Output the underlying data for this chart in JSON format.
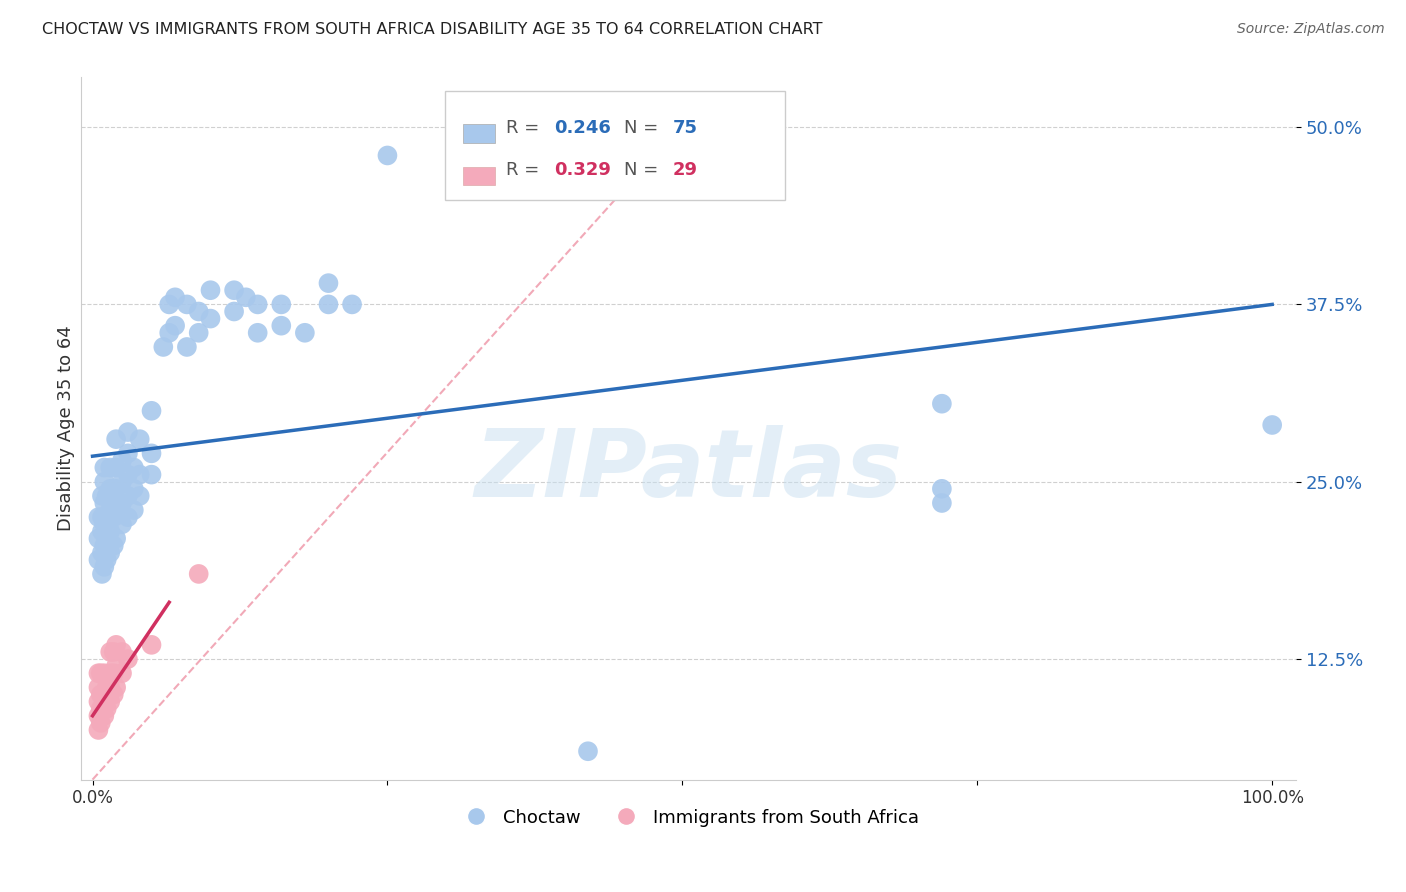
{
  "title": "CHOCTAW VS IMMIGRANTS FROM SOUTH AFRICA DISABILITY AGE 35 TO 64 CORRELATION CHART",
  "source": "Source: ZipAtlas.com",
  "ylabel": "Disability Age 35 to 64",
  "xlim": [
    -0.01,
    1.02
  ],
  "ylim": [
    0.04,
    0.535
  ],
  "yticks": [
    0.125,
    0.25,
    0.375,
    0.5
  ],
  "ytick_labels": [
    "12.5%",
    "25.0%",
    "37.5%",
    "50.0%"
  ],
  "xticks": [
    0.0,
    0.25,
    0.5,
    0.75,
    1.0
  ],
  "xtick_labels": [
    "0.0%",
    "",
    "",
    "",
    "100.0%"
  ],
  "legend_label_blue": "Choctaw",
  "legend_label_pink": "Immigrants from South Africa",
  "blue_color": "#A8C8EC",
  "pink_color": "#F4AABB",
  "blue_line_color": "#2B6CB8",
  "pink_line_color": "#D03060",
  "diag_line_color": "#F0A0B0",
  "r_n_blue_color": "#2B6CB8",
  "r_n_pink_color": "#D03060",
  "watermark": "ZIPatlas",
  "background_color": "#ffffff",
  "grid_color": "#d0d0d0",
  "blue_scatter": [
    [
      0.005,
      0.195
    ],
    [
      0.005,
      0.21
    ],
    [
      0.005,
      0.225
    ],
    [
      0.008,
      0.185
    ],
    [
      0.008,
      0.2
    ],
    [
      0.008,
      0.215
    ],
    [
      0.008,
      0.225
    ],
    [
      0.008,
      0.24
    ],
    [
      0.01,
      0.19
    ],
    [
      0.01,
      0.205
    ],
    [
      0.01,
      0.22
    ],
    [
      0.01,
      0.235
    ],
    [
      0.01,
      0.25
    ],
    [
      0.01,
      0.26
    ],
    [
      0.012,
      0.195
    ],
    [
      0.012,
      0.21
    ],
    [
      0.012,
      0.225
    ],
    [
      0.012,
      0.24
    ],
    [
      0.015,
      0.2
    ],
    [
      0.015,
      0.215
    ],
    [
      0.015,
      0.23
    ],
    [
      0.015,
      0.245
    ],
    [
      0.015,
      0.26
    ],
    [
      0.018,
      0.205
    ],
    [
      0.018,
      0.225
    ],
    [
      0.018,
      0.24
    ],
    [
      0.02,
      0.21
    ],
    [
      0.02,
      0.23
    ],
    [
      0.02,
      0.245
    ],
    [
      0.02,
      0.26
    ],
    [
      0.02,
      0.28
    ],
    [
      0.025,
      0.22
    ],
    [
      0.025,
      0.235
    ],
    [
      0.025,
      0.25
    ],
    [
      0.025,
      0.265
    ],
    [
      0.03,
      0.225
    ],
    [
      0.03,
      0.24
    ],
    [
      0.03,
      0.255
    ],
    [
      0.03,
      0.27
    ],
    [
      0.03,
      0.285
    ],
    [
      0.035,
      0.23
    ],
    [
      0.035,
      0.245
    ],
    [
      0.035,
      0.26
    ],
    [
      0.04,
      0.24
    ],
    [
      0.04,
      0.255
    ],
    [
      0.04,
      0.28
    ],
    [
      0.05,
      0.255
    ],
    [
      0.05,
      0.27
    ],
    [
      0.05,
      0.3
    ],
    [
      0.06,
      0.345
    ],
    [
      0.065,
      0.355
    ],
    [
      0.065,
      0.375
    ],
    [
      0.07,
      0.36
    ],
    [
      0.07,
      0.38
    ],
    [
      0.08,
      0.345
    ],
    [
      0.08,
      0.375
    ],
    [
      0.09,
      0.355
    ],
    [
      0.09,
      0.37
    ],
    [
      0.1,
      0.365
    ],
    [
      0.1,
      0.385
    ],
    [
      0.12,
      0.37
    ],
    [
      0.12,
      0.385
    ],
    [
      0.13,
      0.38
    ],
    [
      0.14,
      0.355
    ],
    [
      0.14,
      0.375
    ],
    [
      0.16,
      0.36
    ],
    [
      0.16,
      0.375
    ],
    [
      0.18,
      0.355
    ],
    [
      0.2,
      0.375
    ],
    [
      0.2,
      0.39
    ],
    [
      0.22,
      0.375
    ],
    [
      0.25,
      0.48
    ],
    [
      0.42,
      0.06
    ],
    [
      0.72,
      0.305
    ],
    [
      0.72,
      0.245
    ],
    [
      0.72,
      0.235
    ],
    [
      1.0,
      0.29
    ]
  ],
  "pink_scatter": [
    [
      0.005,
      0.075
    ],
    [
      0.005,
      0.085
    ],
    [
      0.005,
      0.095
    ],
    [
      0.005,
      0.105
    ],
    [
      0.005,
      0.115
    ],
    [
      0.007,
      0.08
    ],
    [
      0.007,
      0.09
    ],
    [
      0.007,
      0.1
    ],
    [
      0.007,
      0.115
    ],
    [
      0.01,
      0.085
    ],
    [
      0.01,
      0.1
    ],
    [
      0.01,
      0.115
    ],
    [
      0.012,
      0.09
    ],
    [
      0.012,
      0.105
    ],
    [
      0.015,
      0.095
    ],
    [
      0.015,
      0.105
    ],
    [
      0.015,
      0.115
    ],
    [
      0.015,
      0.13
    ],
    [
      0.018,
      0.1
    ],
    [
      0.018,
      0.115
    ],
    [
      0.018,
      0.13
    ],
    [
      0.02,
      0.105
    ],
    [
      0.02,
      0.12
    ],
    [
      0.02,
      0.135
    ],
    [
      0.025,
      0.115
    ],
    [
      0.025,
      0.13
    ],
    [
      0.03,
      0.125
    ],
    [
      0.05,
      0.135
    ],
    [
      0.09,
      0.185
    ]
  ],
  "blue_line_x": [
    0.0,
    1.0
  ],
  "blue_line_y": [
    0.268,
    0.375
  ],
  "pink_line_x": [
    0.0,
    0.065
  ],
  "pink_line_y": [
    0.085,
    0.165
  ],
  "diag_line_x": [
    0.0,
    0.52
  ],
  "diag_line_y": [
    0.04,
    0.52
  ]
}
